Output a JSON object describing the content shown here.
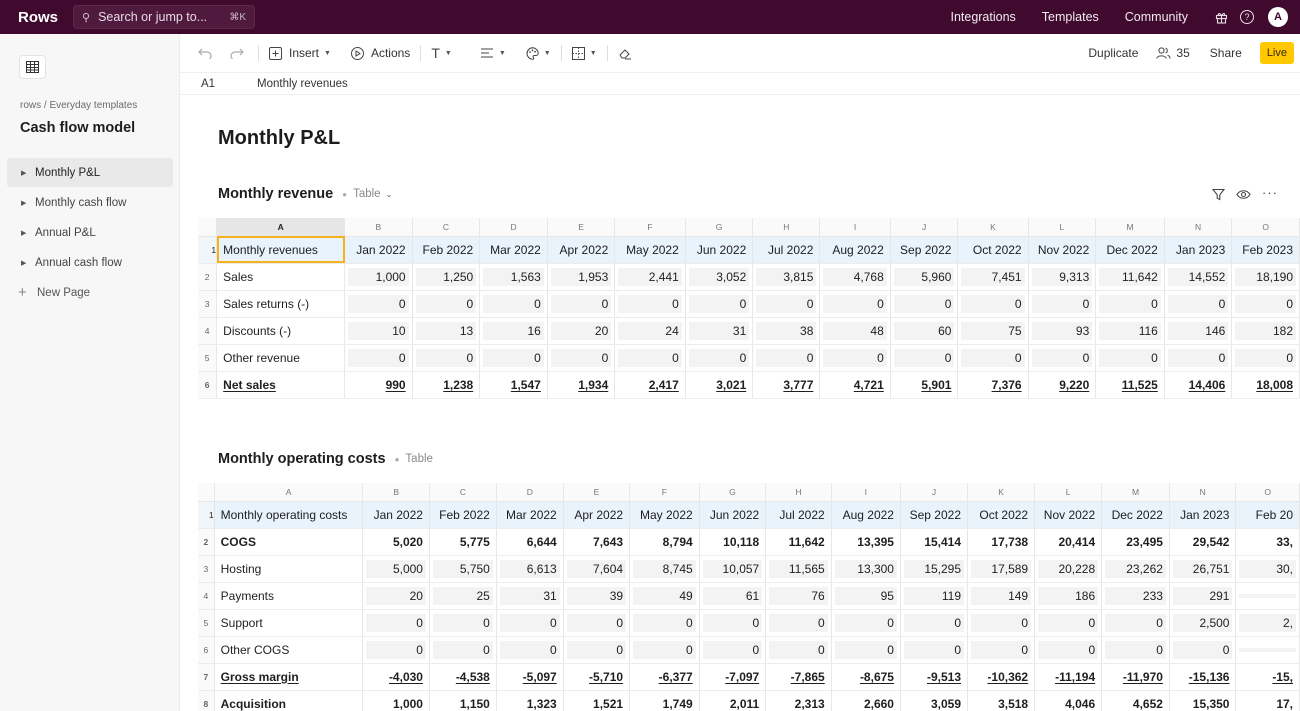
{
  "topbar": {
    "logo": "Rows",
    "search_placeholder": "Search or jump to...",
    "search_shortcut": "⌘K",
    "nav": [
      "Integrations",
      "Templates",
      "Community"
    ],
    "avatar": "A",
    "bg_color": "#3f0a2e"
  },
  "sidebar": {
    "breadcrumb": "rows / Everyday templates",
    "title": "Cash flow model",
    "pages": [
      {
        "label": "Monthly P&L",
        "active": true
      },
      {
        "label": "Monthly cash flow",
        "active": false
      },
      {
        "label": "Annual P&L",
        "active": false
      },
      {
        "label": "Annual cash flow",
        "active": false
      }
    ],
    "new_page": "New Page"
  },
  "toolbar": {
    "insert": "Insert",
    "actions": "Actions",
    "duplicate": "Duplicate",
    "viewers": "35",
    "share": "Share",
    "live": "Live",
    "live_color": "#ffc800"
  },
  "formula_bar": {
    "ref": "A1",
    "value": "Monthly revenues"
  },
  "page_heading": "Monthly P&L",
  "revenue_table": {
    "title": "Monthly revenue",
    "label": "Table",
    "col_letters": [
      "A",
      "B",
      "C",
      "D",
      "E",
      "F",
      "G",
      "H",
      "I",
      "J",
      "K",
      "L",
      "M",
      "N",
      "O"
    ],
    "headers": [
      "Monthly revenues",
      "Jan 2022",
      "Feb 2022",
      "Mar 2022",
      "Apr 2022",
      "May 2022",
      "Jun 2022",
      "Jul 2022",
      "Aug 2022",
      "Sep 2022",
      "Oct 2022",
      "Nov 2022",
      "Dec 2022",
      "Jan 2023",
      "Feb 2023"
    ],
    "rows": [
      {
        "label": "Sales",
        "values": [
          "1,000",
          "1,250",
          "1,563",
          "1,953",
          "2,441",
          "3,052",
          "3,815",
          "4,768",
          "5,960",
          "7,451",
          "9,313",
          "11,642",
          "14,552",
          "18,190"
        ]
      },
      {
        "label": "Sales returns (-)",
        "values": [
          "0",
          "0",
          "0",
          "0",
          "0",
          "0",
          "0",
          "0",
          "0",
          "0",
          "0",
          "0",
          "0",
          "0"
        ]
      },
      {
        "label": "Discounts (-)",
        "values": [
          "10",
          "13",
          "16",
          "20",
          "24",
          "31",
          "38",
          "48",
          "60",
          "75",
          "93",
          "116",
          "146",
          "182"
        ]
      },
      {
        "label": "Other revenue",
        "values": [
          "0",
          "0",
          "0",
          "0",
          "0",
          "0",
          "0",
          "0",
          "0",
          "0",
          "0",
          "0",
          "0",
          "0"
        ]
      },
      {
        "label": "Net sales",
        "values": [
          "990",
          "1,238",
          "1,547",
          "1,934",
          "2,417",
          "3,021",
          "3,777",
          "4,721",
          "5,901",
          "7,376",
          "9,220",
          "11,525",
          "14,406",
          "18,008"
        ],
        "bold": true,
        "underline": true
      }
    ]
  },
  "costs_table": {
    "title": "Monthly operating costs",
    "label": "Table",
    "col_letters": [
      "A",
      "B",
      "C",
      "D",
      "E",
      "F",
      "G",
      "H",
      "I",
      "J",
      "K",
      "L",
      "M",
      "N",
      "O"
    ],
    "headers": [
      "Monthly operating costs",
      "Jan 2022",
      "Feb 2022",
      "Mar 2022",
      "Apr 2022",
      "May 2022",
      "Jun 2022",
      "Jul 2022",
      "Aug 2022",
      "Sep 2022",
      "Oct 2022",
      "Nov 2022",
      "Dec 2022",
      "Jan 2023",
      "Feb 20"
    ],
    "rows": [
      {
        "label": "COGS",
        "values": [
          "5,020",
          "5,775",
          "6,644",
          "7,643",
          "8,794",
          "10,118",
          "11,642",
          "13,395",
          "15,414",
          "17,738",
          "20,414",
          "23,495",
          "29,542",
          "33,"
        ],
        "bold": true,
        "plain": true
      },
      {
        "label": "Hosting",
        "values": [
          "5,000",
          "5,750",
          "6,613",
          "7,604",
          "8,745",
          "10,057",
          "11,565",
          "13,300",
          "15,295",
          "17,589",
          "20,228",
          "23,262",
          "26,751",
          "30,"
        ]
      },
      {
        "label": "Payments",
        "values": [
          "20",
          "25",
          "31",
          "39",
          "49",
          "61",
          "76",
          "95",
          "119",
          "149",
          "186",
          "233",
          "291",
          ""
        ]
      },
      {
        "label": "Support",
        "values": [
          "0",
          "0",
          "0",
          "0",
          "0",
          "0",
          "0",
          "0",
          "0",
          "0",
          "0",
          "0",
          "2,500",
          "2,"
        ]
      },
      {
        "label": "Other COGS",
        "values": [
          "0",
          "0",
          "0",
          "0",
          "0",
          "0",
          "0",
          "0",
          "0",
          "0",
          "0",
          "0",
          "0",
          ""
        ]
      },
      {
        "label": "Gross margin",
        "values": [
          "-4,030",
          "-4,538",
          "-5,097",
          "-5,710",
          "-6,377",
          "-7,097",
          "-7,865",
          "-8,675",
          "-9,513",
          "-10,362",
          "-11,194",
          "-11,970",
          "-15,136",
          "-15,"
        ],
        "bold": true,
        "underline": true
      },
      {
        "label": "Acquisition",
        "values": [
          "1,000",
          "1,150",
          "1,323",
          "1,521",
          "1,749",
          "2,011",
          "2,313",
          "2,660",
          "3,059",
          "3,518",
          "4,046",
          "4,652",
          "15,350",
          "17,"
        ],
        "bold": true,
        "plain": true
      }
    ]
  }
}
